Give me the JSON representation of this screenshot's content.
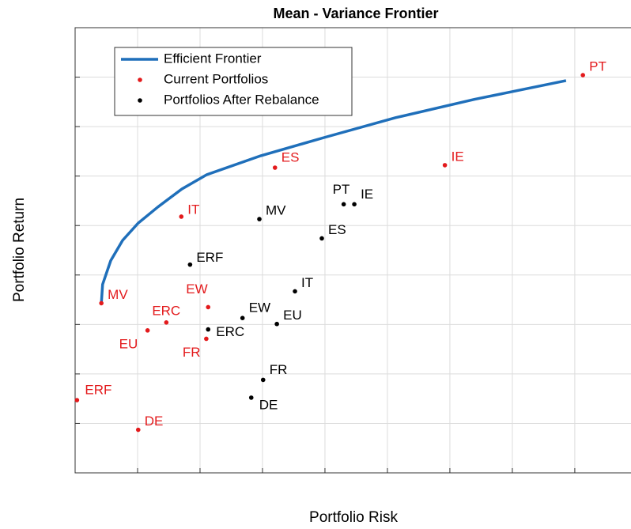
{
  "chart_data": {
    "type": "scatter",
    "title": "Mean - Variance Frontier",
    "x_label": "Portfolio Risk",
    "y_label": "Portfolio Return",
    "xlim": [
      0,
      8.9
    ],
    "ylim": [
      0,
      9
    ],
    "xticks": [
      0,
      1,
      2,
      3,
      4,
      5,
      6,
      7,
      8
    ],
    "yticks": [
      0,
      1,
      2,
      3,
      4,
      5,
      6,
      7,
      8,
      9
    ],
    "grid": true,
    "legend": "upper left",
    "series": [
      {
        "name": "Efficient Frontier",
        "mode": "line",
        "color": "#1f6fba",
        "x": [
          0.42,
          0.44,
          0.57,
          0.76,
          1.01,
          1.33,
          1.71,
          2.11,
          2.97,
          3.99,
          5.13,
          6.39,
          7.86
        ],
        "values": [
          3.43,
          3.81,
          4.29,
          4.7,
          5.05,
          5.38,
          5.74,
          6.03,
          6.41,
          6.78,
          7.18,
          7.55,
          7.93
        ]
      },
      {
        "name": "Current Portfolios",
        "mode": "markers",
        "color": "#e31a1c",
        "labels": [
          "PT",
          "IE",
          "ES",
          "IT",
          "MV",
          "EW",
          "ERC",
          "EU",
          "FR",
          "ERF",
          "DE"
        ],
        "x": [
          8.13,
          5.92,
          3.2,
          1.7,
          0.42,
          2.13,
          1.46,
          1.16,
          2.1,
          0.03,
          1.01
        ],
        "values": [
          8.04,
          6.22,
          6.17,
          5.18,
          3.43,
          3.35,
          3.04,
          2.88,
          2.71,
          1.47,
          0.87
        ]
      },
      {
        "name": "Portfolios After Rebalance",
        "mode": "markers",
        "color": "#000000",
        "labels": [
          "PT",
          "IE",
          "MV",
          "ES",
          "ERF",
          "IT",
          "EW",
          "EU",
          "ERC",
          "FR",
          "DE"
        ],
        "x": [
          4.3,
          4.47,
          2.95,
          3.95,
          1.84,
          3.52,
          2.68,
          3.23,
          2.13,
          3.01,
          2.82
        ],
        "values": [
          5.43,
          5.43,
          5.13,
          4.74,
          4.21,
          3.67,
          3.13,
          3.01,
          2.9,
          1.88,
          1.52
        ]
      }
    ]
  }
}
